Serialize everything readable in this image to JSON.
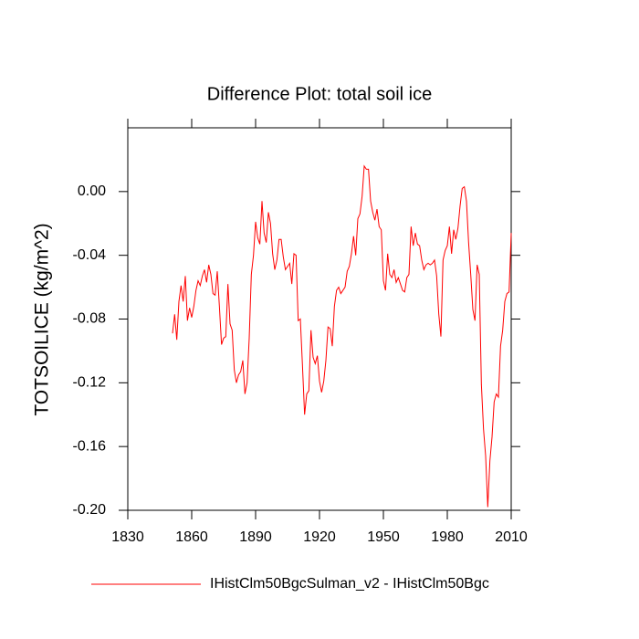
{
  "chart_data": {
    "type": "line",
    "title": "Difference Plot: total soil ice",
    "y_label": "TOTSOILICE  (kg/m^2)",
    "x": [
      1851,
      1852,
      1853,
      1854,
      1855,
      1856,
      1857,
      1858,
      1859,
      1860,
      1861,
      1862,
      1863,
      1864,
      1865,
      1866,
      1867,
      1868,
      1869,
      1870,
      1871,
      1872,
      1873,
      1874,
      1875,
      1876,
      1877,
      1878,
      1879,
      1880,
      1881,
      1882,
      1883,
      1884,
      1885,
      1886,
      1887,
      1888,
      1889,
      1890,
      1891,
      1892,
      1893,
      1894,
      1895,
      1896,
      1897,
      1898,
      1899,
      1900,
      1901,
      1902,
      1903,
      1904,
      1905,
      1906,
      1907,
      1908,
      1909,
      1910,
      1911,
      1912,
      1913,
      1914,
      1915,
      1916,
      1917,
      1918,
      1919,
      1920,
      1921,
      1922,
      1923,
      1924,
      1925,
      1926,
      1927,
      1928,
      1929,
      1930,
      1931,
      1932,
      1933,
      1934,
      1935,
      1936,
      1937,
      1938,
      1939,
      1940,
      1941,
      1942,
      1943,
      1944,
      1945,
      1946,
      1947,
      1948,
      1949,
      1950,
      1951,
      1952,
      1953,
      1954,
      1955,
      1956,
      1957,
      1958,
      1959,
      1960,
      1961,
      1962,
      1963,
      1964,
      1965,
      1966,
      1967,
      1968,
      1969,
      1970,
      1971,
      1972,
      1973,
      1974,
      1975,
      1976,
      1977,
      1978,
      1979,
      1980,
      1981,
      1982,
      1983,
      1984,
      1985,
      1986,
      1987,
      1988,
      1989,
      1990,
      1991,
      1992,
      1993,
      1994,
      1995,
      1996,
      1997,
      1998,
      1999,
      2000,
      2001,
      2002,
      2003,
      2004,
      2005,
      2006,
      2007,
      2008,
      2009,
      2010
    ],
    "series": [
      {
        "name": "IHistClm50BgcSulman_v2 - IHistClm50Bgc",
        "color": "#ff0000",
        "values": [
          -0.089,
          -0.077,
          -0.093,
          -0.069,
          -0.059,
          -0.069,
          -0.053,
          -0.081,
          -0.073,
          -0.079,
          -0.072,
          -0.062,
          -0.056,
          -0.059,
          -0.053,
          -0.049,
          -0.057,
          -0.046,
          -0.052,
          -0.064,
          -0.065,
          -0.05,
          -0.072,
          -0.096,
          -0.092,
          -0.091,
          -0.058,
          -0.083,
          -0.087,
          -0.112,
          -0.12,
          -0.115,
          -0.113,
          -0.106,
          -0.127,
          -0.12,
          -0.092,
          -0.052,
          -0.04,
          -0.019,
          -0.029,
          -0.033,
          -0.006,
          -0.026,
          -0.032,
          -0.013,
          -0.02,
          -0.039,
          -0.049,
          -0.043,
          -0.03,
          -0.03,
          -0.041,
          -0.049,
          -0.047,
          -0.045,
          -0.058,
          -0.039,
          -0.04,
          -0.081,
          -0.08,
          -0.109,
          -0.14,
          -0.127,
          -0.125,
          -0.087,
          -0.104,
          -0.108,
          -0.103,
          -0.119,
          -0.126,
          -0.119,
          -0.106,
          -0.085,
          -0.086,
          -0.097,
          -0.072,
          -0.062,
          -0.06,
          -0.064,
          -0.062,
          -0.06,
          -0.05,
          -0.047,
          -0.039,
          -0.028,
          -0.04,
          -0.017,
          -0.014,
          -0.003,
          0.016,
          0.014,
          0.014,
          -0.006,
          -0.013,
          -0.018,
          -0.011,
          -0.022,
          -0.024,
          -0.056,
          -0.062,
          -0.039,
          -0.052,
          -0.054,
          -0.049,
          -0.057,
          -0.054,
          -0.058,
          -0.062,
          -0.063,
          -0.054,
          -0.052,
          -0.022,
          -0.034,
          -0.026,
          -0.033,
          -0.034,
          -0.043,
          -0.049,
          -0.046,
          -0.045,
          -0.046,
          -0.045,
          -0.043,
          -0.053,
          -0.077,
          -0.091,
          -0.043,
          -0.037,
          -0.034,
          -0.022,
          -0.039,
          -0.024,
          -0.03,
          -0.023,
          -0.009,
          0.002,
          0.003,
          -0.006,
          -0.032,
          -0.052,
          -0.074,
          -0.081,
          -0.046,
          -0.052,
          -0.121,
          -0.149,
          -0.166,
          -0.198,
          -0.169,
          -0.154,
          -0.132,
          -0.127,
          -0.129,
          -0.097,
          -0.087,
          -0.069,
          -0.064,
          -0.063,
          -0.026
        ]
      }
    ],
    "xlim": [
      1830,
      2010
    ],
    "xticks": [
      1830,
      1860,
      1890,
      1920,
      1950,
      1980,
      2010
    ],
    "ylim": [
      -0.2,
      0.04
    ],
    "yticks": [
      {
        "value": -0.2,
        "label": "-0.20"
      },
      {
        "value": -0.16,
        "label": "-0.16"
      },
      {
        "value": -0.12,
        "label": "-0.12"
      },
      {
        "value": -0.08,
        "label": "-0.08"
      },
      {
        "value": -0.04,
        "label": "-0.04"
      },
      {
        "value": 0,
        "label": "0.00"
      }
    ],
    "grid": false
  }
}
